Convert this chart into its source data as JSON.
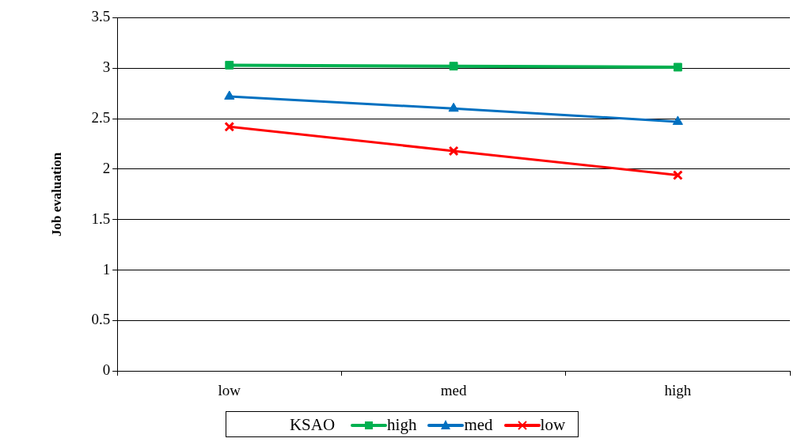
{
  "chart_data": {
    "type": "line",
    "ylabel": "Job evaluation",
    "legend_title": "KSAO",
    "categories": [
      "low",
      "med",
      "high"
    ],
    "series": [
      {
        "name": "high",
        "color": "#00b050",
        "marker": "square",
        "values": [
          3.03,
          3.02,
          3.01
        ]
      },
      {
        "name": "med",
        "color": "#0070c0",
        "marker": "triangle",
        "values": [
          2.72,
          2.6,
          2.47
        ]
      },
      {
        "name": "low",
        "color": "#ff0000",
        "marker": "cross",
        "values": [
          2.42,
          2.18,
          1.94
        ]
      }
    ],
    "ylim": [
      0,
      3.5
    ],
    "yticks": [
      0,
      0.5,
      1,
      1.5,
      2,
      2.5,
      3,
      3.5
    ],
    "grid": "y",
    "legend": "bottom"
  }
}
